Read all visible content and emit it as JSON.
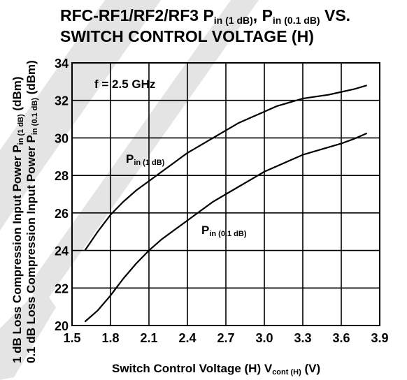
{
  "chart_data": {
    "type": "line",
    "title": [
      "RFC-RF1/RF2/RF3 P",
      "in (1 dB)",
      ", P",
      "in (0.1 dB)",
      " VS.",
      "SWITCH CONTROL VOLTAGE (H)"
    ],
    "xlabel": [
      "Switch Control Voltage (H)  V",
      "cont (H)",
      " (V)"
    ],
    "ylabel": [
      [
        "1 dB Loss Compression Input Power  P",
        "in (1 dB)",
        " (dBm)"
      ],
      [
        "0.1 dB Loss Compression Input Power  P",
        "in (0.1 dB)",
        " (dBm)"
      ]
    ],
    "annotation": "f = 2.5 GHz",
    "x": [
      1.6,
      1.7,
      1.8,
      1.9,
      2.0,
      2.1,
      2.2,
      2.3,
      2.4,
      2.5,
      2.6,
      2.7,
      2.8,
      2.9,
      3.0,
      3.1,
      3.2,
      3.3,
      3.4,
      3.5,
      3.6,
      3.7,
      3.8
    ],
    "series": [
      {
        "name": [
          "P",
          "in (1 dB)"
        ],
        "color": "#000000",
        "values": [
          24.0,
          25.0,
          25.9,
          26.6,
          27.2,
          27.7,
          28.2,
          28.7,
          29.2,
          29.6,
          30.0,
          30.4,
          30.8,
          31.1,
          31.4,
          31.7,
          31.9,
          32.1,
          32.2,
          32.3,
          32.45,
          32.6,
          32.8
        ]
      },
      {
        "name": [
          "P",
          "in (0.1 dB)"
        ],
        "color": "#000000",
        "values": [
          20.2,
          20.8,
          21.6,
          22.5,
          23.3,
          24.0,
          24.6,
          25.1,
          25.6,
          26.1,
          26.6,
          27.0,
          27.4,
          27.8,
          28.2,
          28.5,
          28.8,
          29.1,
          29.3,
          29.5,
          29.7,
          29.95,
          30.25
        ]
      }
    ],
    "xlim": [
      1.5,
      3.9
    ],
    "xticks": [
      1.5,
      1.8,
      2.1,
      2.4,
      2.7,
      {
        "value": 3,
        "label": "3.0"
      },
      3.3,
      3.6,
      3.9
    ],
    "ylim": [
      20,
      34
    ],
    "yticks": [
      20,
      22,
      24,
      26,
      28,
      30,
      32,
      34
    ],
    "grid": true
  }
}
